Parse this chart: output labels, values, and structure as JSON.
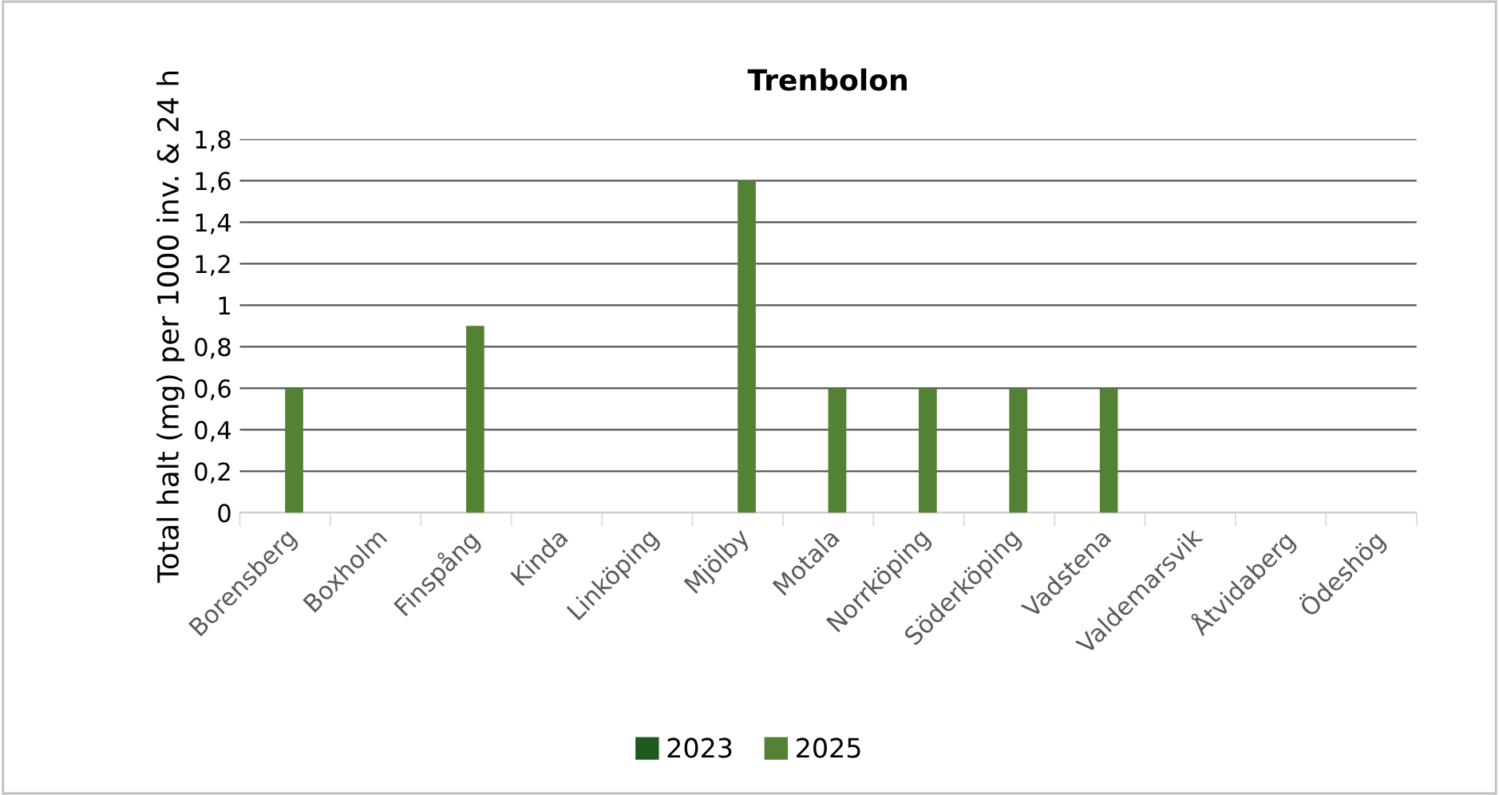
{
  "chart_data": {
    "type": "bar",
    "title": "Trenbolon",
    "ylabel": "Total halt (mg) per 1000 inv. & 24 h",
    "categories": [
      "Borensberg",
      "Boxholm",
      "Finspång",
      "Kinda",
      "Linköping",
      "Mjölby",
      "Motala",
      "Norrköping",
      "Söderköping",
      "Vadstena",
      "Valdemarsvik",
      "Åtvidaberg",
      "Ödeshög"
    ],
    "series": [
      {
        "name": "2023",
        "color": "#1e5a1e",
        "values": [
          null,
          null,
          null,
          null,
          null,
          null,
          null,
          null,
          null,
          null,
          null,
          null,
          null
        ]
      },
      {
        "name": "2025",
        "color": "#548235",
        "values": [
          0.6,
          null,
          0.9,
          null,
          null,
          1.6,
          0.6,
          0.6,
          0.6,
          0.6,
          null,
          null,
          null
        ]
      }
    ],
    "ylim": [
      0,
      1.8
    ],
    "yticks": [
      0,
      {
        "value": 0.2,
        "label": "0,2"
      },
      {
        "value": 0.4,
        "label": "0,4"
      },
      {
        "value": 0.6,
        "label": "0,6"
      },
      {
        "value": 0.8,
        "label": "0,8"
      },
      1,
      {
        "value": 1.2,
        "label": "1,2"
      },
      {
        "value": 1.4,
        "label": "1,4"
      },
      {
        "value": 1.6,
        "label": "1,6"
      },
      {
        "value": 1.8,
        "label": "1,8"
      }
    ],
    "grid": "y",
    "legend": "bottom"
  }
}
